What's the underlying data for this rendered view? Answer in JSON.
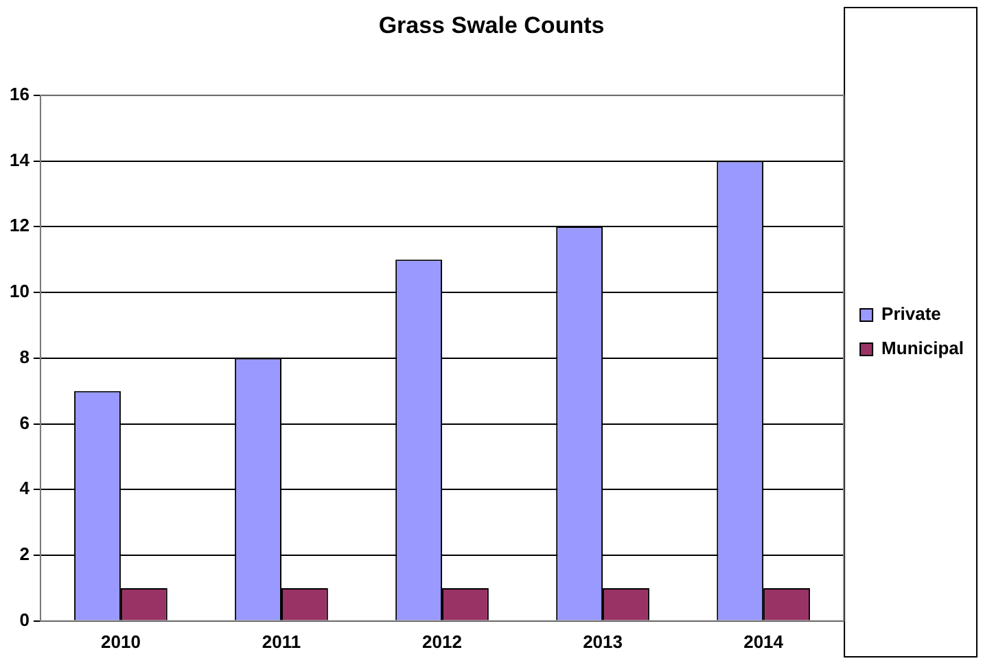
{
  "chart_data": {
    "type": "bar",
    "title": "Grass Swale Counts",
    "categories": [
      "2010",
      "2011",
      "2012",
      "2013",
      "2014"
    ],
    "series": [
      {
        "name": "Private",
        "color": "#9999ff",
        "values": [
          7,
          8,
          11,
          12,
          14
        ]
      },
      {
        "name": "Municipal",
        "color": "#993366",
        "values": [
          1,
          1,
          1,
          1,
          1
        ]
      }
    ],
    "ylim": [
      0,
      16
    ],
    "yticks": [
      0,
      2,
      4,
      6,
      8,
      10,
      12,
      14,
      16
    ],
    "grid": "y",
    "legend": "right"
  }
}
